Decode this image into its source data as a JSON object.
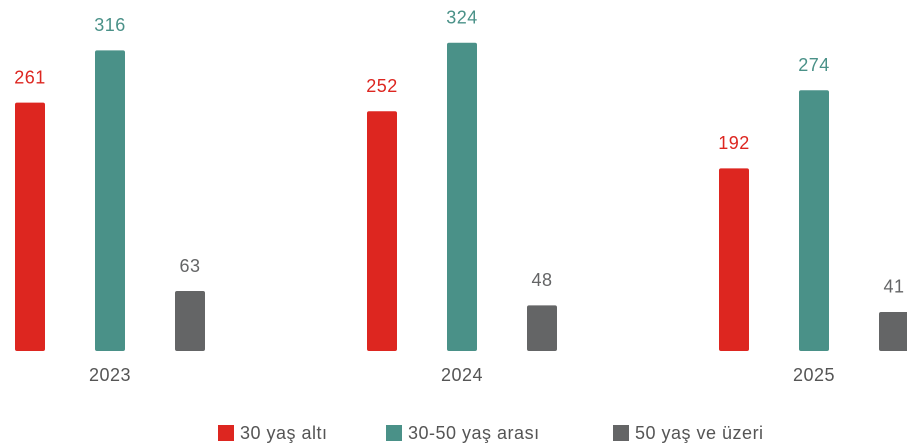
{
  "chart_data": {
    "type": "bar",
    "categories": [
      "2023",
      "2024",
      "2025"
    ],
    "series": [
      {
        "name": "30 yaş altı",
        "color": "#dd2620",
        "values": [
          261,
          252,
          192
        ]
      },
      {
        "name": "30-50 yaş arası",
        "color": "#4a9188",
        "values": [
          316,
          324,
          274
        ]
      },
      {
        "name": "50 yaş ve üzeri",
        "color": "#646566",
        "values": [
          63,
          48,
          41
        ]
      }
    ],
    "ylim": [
      0,
      350
    ],
    "legend": "bottom"
  }
}
